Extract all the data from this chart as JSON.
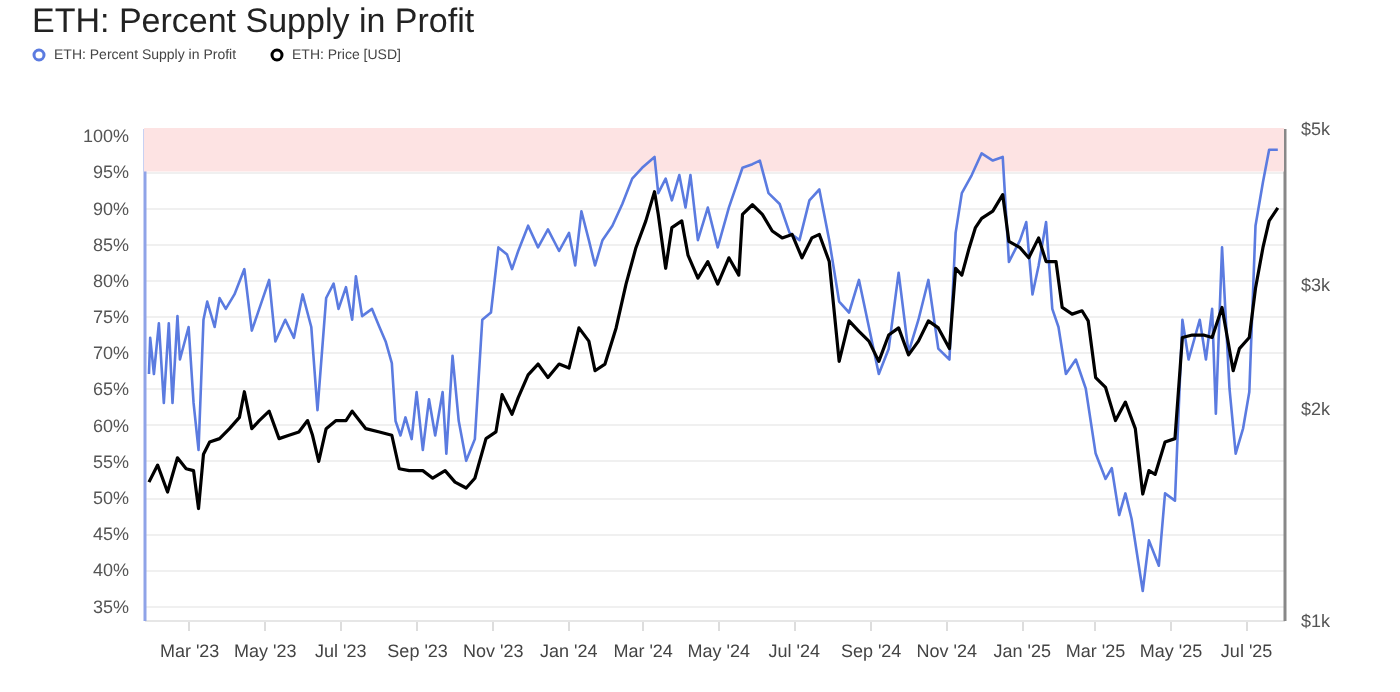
{
  "chart_data": {
    "type": "line",
    "title": "ETH: Percent Supply in Profit",
    "xlim": [
      "2023-01-24",
      "2025-08-01"
    ],
    "xticks": [
      {
        "value": "2023-03-01",
        "label": "Mar '23"
      },
      {
        "value": "2023-05-01",
        "label": "May '23"
      },
      {
        "value": "2023-07-01",
        "label": "Jul '23"
      },
      {
        "value": "2023-09-01",
        "label": "Sep '23"
      },
      {
        "value": "2023-11-01",
        "label": "Nov '23"
      },
      {
        "value": "2024-01-01",
        "label": "Jan '24"
      },
      {
        "value": "2024-03-01",
        "label": "Mar '24"
      },
      {
        "value": "2024-05-01",
        "label": "May '24"
      },
      {
        "value": "2024-07-01",
        "label": "Jul '24"
      },
      {
        "value": "2024-09-01",
        "label": "Sep '24"
      },
      {
        "value": "2024-11-01",
        "label": "Nov '24"
      },
      {
        "value": "2025-01-01",
        "label": "Jan '25"
      },
      {
        "value": "2025-03-01",
        "label": "Mar '25"
      },
      {
        "value": "2025-05-01",
        "label": "May '25"
      },
      {
        "value": "2025-07-01",
        "label": "Jul '25"
      }
    ],
    "ylim": [
      33,
      101
    ],
    "yticks": [
      {
        "value": 35,
        "label": "35%"
      },
      {
        "value": 40,
        "label": "40%"
      },
      {
        "value": 45,
        "label": "45%"
      },
      {
        "value": 50,
        "label": "50%"
      },
      {
        "value": 55,
        "label": "55%"
      },
      {
        "value": 60,
        "label": "60%"
      },
      {
        "value": 65,
        "label": "65%"
      },
      {
        "value": 70,
        "label": "70%"
      },
      {
        "value": 75,
        "label": "75%"
      },
      {
        "value": 80,
        "label": "80%"
      },
      {
        "value": 85,
        "label": "85%"
      },
      {
        "value": 90,
        "label": "90%"
      },
      {
        "value": 95,
        "label": "95%"
      },
      {
        "value": 100,
        "label": "100%"
      }
    ],
    "y2lim": [
      1000,
      5000
    ],
    "y2ticks": [
      {
        "value": 1000,
        "label": "$1k"
      },
      {
        "value": 2000,
        "label": "$2k"
      },
      {
        "value": 3000,
        "label": "$3k"
      },
      {
        "value": 5000,
        "label": "$5k"
      }
    ],
    "log": "y2",
    "grid": "y",
    "legend": "top left",
    "bands": [
      {
        "axis": "y",
        "from": 95,
        "to": 101,
        "color": "#fde3e3"
      }
    ],
    "series": [
      {
        "name": "ETH: Percent Supply in Profit",
        "color": "#5b7be0",
        "x": [
          "2023-01-28",
          "2023-01-29",
          "2023-02-01",
          "2023-02-05",
          "2023-02-09",
          "2023-02-13",
          "2023-02-16",
          "2023-02-20",
          "2023-02-22",
          "2023-03-01",
          "2023-03-05",
          "2023-03-09",
          "2023-03-13",
          "2023-03-16",
          "2023-03-22",
          "2023-03-26",
          "2023-03-31",
          "2023-04-07",
          "2023-04-15",
          "2023-04-21",
          "2023-04-27",
          "2023-05-05",
          "2023-05-10",
          "2023-05-18",
          "2023-05-25",
          "2023-06-01",
          "2023-06-08",
          "2023-06-13",
          "2023-06-20",
          "2023-06-26",
          "2023-06-30",
          "2023-07-06",
          "2023-07-11",
          "2023-07-14",
          "2023-07-19",
          "2023-07-27",
          "2023-08-02",
          "2023-08-07",
          "2023-08-12",
          "2023-08-15",
          "2023-08-19",
          "2023-08-23",
          "2023-08-28",
          "2023-09-01",
          "2023-09-06",
          "2023-09-11",
          "2023-09-16",
          "2023-09-22",
          "2023-09-25",
          "2023-09-30",
          "2023-10-05",
          "2023-10-11",
          "2023-10-18",
          "2023-10-24",
          "2023-10-31",
          "2023-11-06",
          "2023-11-13",
          "2023-11-17",
          "2023-11-22",
          "2023-11-30",
          "2023-12-08",
          "2023-12-16",
          "2023-12-25",
          "2024-01-02",
          "2024-01-07",
          "2024-01-12",
          "2024-01-18",
          "2024-01-23",
          "2024-01-29",
          "2024-02-06",
          "2024-02-14",
          "2024-02-22",
          "2024-03-01",
          "2024-03-11",
          "2024-03-14",
          "2024-03-20",
          "2024-03-25",
          "2024-03-31",
          "2024-04-05",
          "2024-04-09",
          "2024-04-15",
          "2024-04-23",
          "2024-05-01",
          "2024-05-10",
          "2024-05-21",
          "2024-05-29",
          "2024-06-04",
          "2024-06-11",
          "2024-06-20",
          "2024-06-28",
          "2024-07-06",
          "2024-07-14",
          "2024-07-22",
          "2024-07-30",
          "2024-08-07",
          "2024-08-15",
          "2024-08-23",
          "2024-08-31",
          "2024-09-08",
          "2024-09-16",
          "2024-09-24",
          "2024-10-02",
          "2024-10-10",
          "2024-10-18",
          "2024-10-26",
          "2024-11-04",
          "2024-11-09",
          "2024-11-14",
          "2024-11-22",
          "2024-11-30",
          "2024-12-09",
          "2024-12-17",
          "2024-12-22",
          "2024-12-31",
          "2025-01-05",
          "2025-01-10",
          "2025-01-15",
          "2025-01-21",
          "2025-01-26",
          "2025-01-31",
          "2025-02-06",
          "2025-02-14",
          "2025-02-22",
          "2025-03-02",
          "2025-03-10",
          "2025-03-15",
          "2025-03-21",
          "2025-03-26",
          "2025-03-31",
          "2025-04-09",
          "2025-04-14",
          "2025-04-22",
          "2025-04-27",
          "2025-05-05",
          "2025-05-11",
          "2025-05-16",
          "2025-05-25",
          "2025-05-30",
          "2025-06-04",
          "2025-06-07",
          "2025-06-12",
          "2025-06-18",
          "2025-06-23",
          "2025-06-29",
          "2025-07-04",
          "2025-07-09",
          "2025-07-15",
          "2025-07-20",
          "2025-07-27"
        ],
        "values": [
          67,
          72,
          67,
          74,
          63,
          74,
          63,
          75,
          69,
          73.5,
          63,
          56.5,
          74.5,
          77,
          73.5,
          77.5,
          76,
          78,
          81.5,
          73,
          76,
          80,
          71.5,
          74.5,
          72,
          78,
          73.5,
          62,
          77.5,
          79.5,
          76,
          79,
          74.5,
          80.5,
          75,
          76,
          73.5,
          71.5,
          68.5,
          60.5,
          58.5,
          61,
          58,
          64.5,
          56.5,
          63.5,
          58.5,
          64.5,
          56,
          69.5,
          60.5,
          55,
          58,
          74.5,
          75.5,
          84.5,
          83.5,
          81.5,
          84,
          87.5,
          84.5,
          87,
          84,
          86.5,
          82,
          89.5,
          85.5,
          82,
          85.5,
          87.5,
          90.5,
          94,
          95.5,
          97,
          92,
          94,
          91,
          94.5,
          90,
          94.5,
          85.5,
          90,
          84.5,
          90,
          95.5,
          96,
          96.5,
          92,
          90.5,
          86.5,
          85.5,
          91,
          92.5,
          85.5,
          77,
          75.5,
          80,
          73.5,
          67,
          70.5,
          81,
          70,
          74.5,
          80,
          70.5,
          69,
          86.5,
          92,
          94.5,
          97.5,
          96.5,
          97,
          82.5,
          85.5,
          88,
          78,
          82,
          88,
          76,
          73.5,
          67,
          69,
          65,
          56,
          52.5,
          54,
          47.5,
          50.5,
          47,
          37,
          44,
          40.5,
          50.5,
          49.5,
          74.5,
          69,
          74.5,
          69,
          76,
          61.5,
          84.5,
          65,
          56,
          59.5,
          64.5,
          87.5,
          93.5,
          98,
          98
        ]
      },
      {
        "name": "ETH: Price [USD]",
        "color": "#000000",
        "axis": "y2",
        "x": [
          "2023-01-28",
          "2023-02-04",
          "2023-02-12",
          "2023-02-20",
          "2023-02-27",
          "2023-03-05",
          "2023-03-09",
          "2023-03-13",
          "2023-03-18",
          "2023-03-26",
          "2023-04-03",
          "2023-04-11",
          "2023-04-15",
          "2023-04-21",
          "2023-04-27",
          "2023-05-05",
          "2023-05-13",
          "2023-05-21",
          "2023-05-29",
          "2023-06-05",
          "2023-06-09",
          "2023-06-14",
          "2023-06-20",
          "2023-06-28",
          "2023-07-06",
          "2023-07-11",
          "2023-07-22",
          "2023-08-02",
          "2023-08-12",
          "2023-08-18",
          "2023-08-26",
          "2023-09-06",
          "2023-09-14",
          "2023-09-24",
          "2023-10-02",
          "2023-10-11",
          "2023-10-18",
          "2023-10-27",
          "2023-11-04",
          "2023-11-09",
          "2023-11-17",
          "2023-11-22",
          "2023-11-30",
          "2023-12-08",
          "2023-12-16",
          "2023-12-25",
          "2024-01-02",
          "2024-01-10",
          "2024-01-18",
          "2024-01-23",
          "2024-01-31",
          "2024-02-09",
          "2024-02-17",
          "2024-02-25",
          "2024-03-04",
          "2024-03-11",
          "2024-03-14",
          "2024-03-20",
          "2024-03-25",
          "2024-04-02",
          "2024-04-07",
          "2024-04-15",
          "2024-04-23",
          "2024-05-01",
          "2024-05-10",
          "2024-05-18",
          "2024-05-21",
          "2024-05-29",
          "2024-06-06",
          "2024-06-14",
          "2024-06-22",
          "2024-06-30",
          "2024-07-08",
          "2024-07-16",
          "2024-07-22",
          "2024-07-30",
          "2024-08-07",
          "2024-08-15",
          "2024-08-23",
          "2024-08-31",
          "2024-09-08",
          "2024-09-16",
          "2024-09-24",
          "2024-10-02",
          "2024-10-10",
          "2024-10-18",
          "2024-10-26",
          "2024-11-04",
          "2024-11-09",
          "2024-11-14",
          "2024-11-20",
          "2024-11-25",
          "2024-11-30",
          "2024-12-09",
          "2024-12-17",
          "2024-12-22",
          "2024-12-31",
          "2025-01-07",
          "2025-01-15",
          "2025-01-21",
          "2025-01-29",
          "2025-02-03",
          "2025-02-11",
          "2025-02-19",
          "2025-02-24",
          "2025-03-02",
          "2025-03-10",
          "2025-03-18",
          "2025-03-26",
          "2025-04-03",
          "2025-04-09",
          "2025-04-14",
          "2025-04-19",
          "2025-04-27",
          "2025-05-05",
          "2025-05-11",
          "2025-05-19",
          "2025-05-28",
          "2025-06-04",
          "2025-06-12",
          "2025-06-21",
          "2025-06-26",
          "2025-07-04",
          "2025-07-09",
          "2025-07-15",
          "2025-07-20",
          "2025-07-27"
        ],
        "values": [
          1570,
          1660,
          1520,
          1700,
          1640,
          1630,
          1440,
          1720,
          1790,
          1810,
          1870,
          1940,
          2110,
          1870,
          1920,
          1980,
          1810,
          1830,
          1850,
          1920,
          1830,
          1680,
          1870,
          1920,
          1920,
          1980,
          1870,
          1850,
          1830,
          1640,
          1630,
          1630,
          1590,
          1630,
          1570,
          1540,
          1590,
          1810,
          1850,
          2090,
          1960,
          2070,
          2230,
          2310,
          2210,
          2310,
          2280,
          2600,
          2490,
          2260,
          2310,
          2600,
          3000,
          3380,
          3690,
          4060,
          3770,
          3160,
          3610,
          3690,
          3300,
          3060,
          3230,
          3000,
          3270,
          3090,
          3770,
          3890,
          3770,
          3570,
          3490,
          3530,
          3270,
          3490,
          3530,
          3230,
          2330,
          2660,
          2570,
          2490,
          2330,
          2540,
          2600,
          2380,
          2490,
          2660,
          2600,
          2430,
          3160,
          3090,
          3380,
          3610,
          3720,
          3810,
          4020,
          3450,
          3380,
          3270,
          3490,
          3230,
          3230,
          2780,
          2720,
          2750,
          2660,
          2210,
          2140,
          1920,
          2040,
          1870,
          1510,
          1630,
          1610,
          1790,
          1810,
          2520,
          2540,
          2540,
          2520,
          2780,
          2260,
          2430,
          2520,
          2960,
          3380,
          3690,
          3850
        ]
      }
    ]
  }
}
